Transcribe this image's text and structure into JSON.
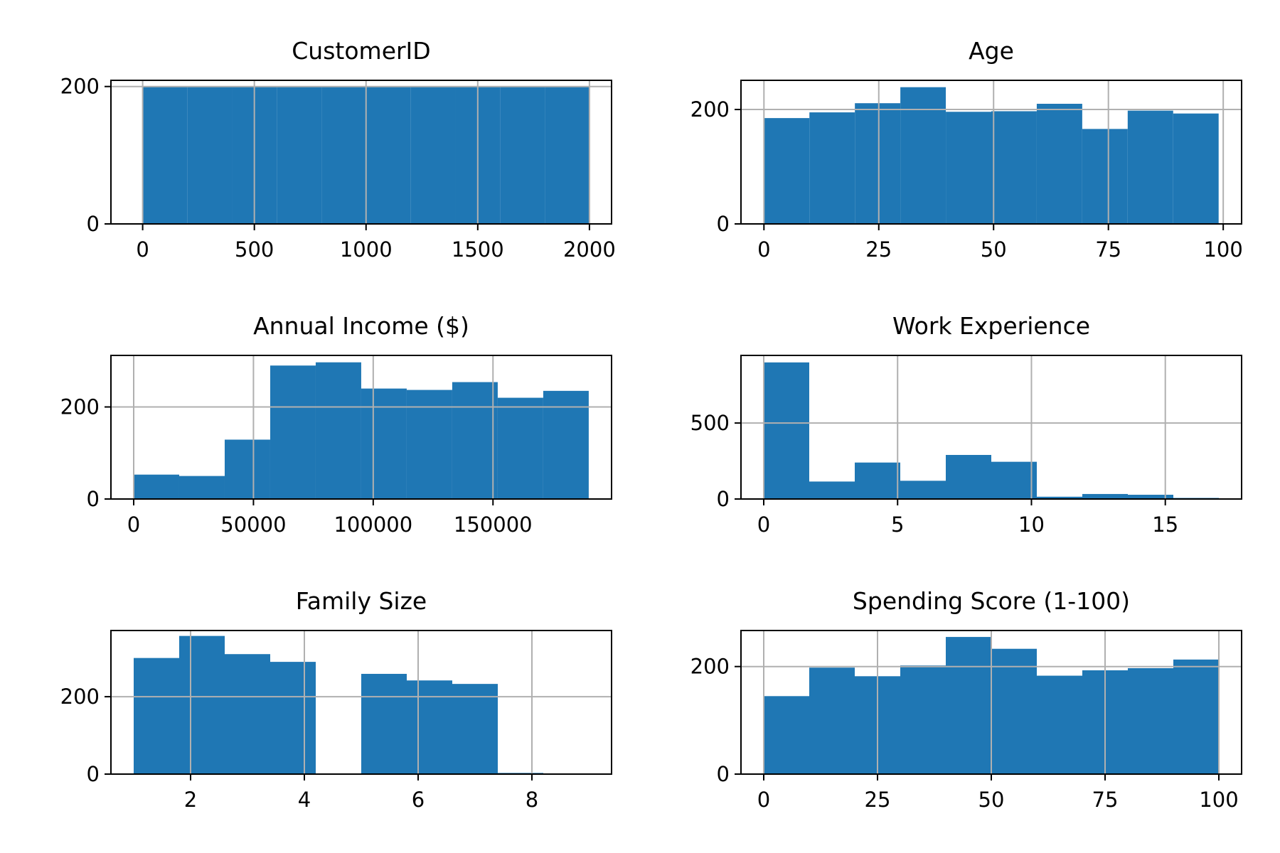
{
  "chart_data": [
    {
      "type": "bar",
      "title": "CustomerID",
      "xlabel": "",
      "ylabel": "",
      "xlim": [
        -142,
        2099
      ],
      "ylim": [
        0,
        209
      ],
      "xticks": [
        0,
        500,
        1000,
        1500,
        2000
      ],
      "xtick_labels": [
        "0",
        "500",
        "1000",
        "1500",
        "2000"
      ],
      "yticks": [
        0,
        200
      ],
      "ytick_labels": [
        "0",
        "200"
      ],
      "bin_edges": [
        1,
        200.9,
        400.8,
        600.7,
        800.6,
        1000.5,
        1200.4,
        1400.3,
        1600.2,
        1800.1,
        2000
      ],
      "values": [
        200,
        200,
        200,
        200,
        200,
        200,
        200,
        200,
        200,
        200
      ],
      "grid": true,
      "color": "#1f77b4"
    },
    {
      "type": "bar",
      "title": "Age",
      "xlabel": "",
      "ylabel": "",
      "xlim": [
        -5,
        104
      ],
      "ylim": [
        0,
        251
      ],
      "xticks": [
        0,
        25,
        50,
        75,
        100
      ],
      "xtick_labels": [
        "0",
        "25",
        "50",
        "75",
        "100"
      ],
      "yticks": [
        0,
        200
      ],
      "ytick_labels": [
        "0",
        "200"
      ],
      "bin_edges": [
        0,
        9.9,
        19.8,
        29.7,
        39.6,
        49.5,
        59.4,
        69.3,
        79.2,
        89.1,
        99
      ],
      "values": [
        185,
        195,
        211,
        239,
        196,
        197,
        210,
        166,
        198,
        193
      ],
      "grid": true,
      "color": "#1f77b4"
    },
    {
      "type": "bar",
      "title": "Annual Income ($)",
      "xlabel": "",
      "ylabel": "",
      "xlim": [
        -9500,
        199500
      ],
      "ylim": [
        0,
        312
      ],
      "xticks": [
        0,
        50000,
        100000,
        150000
      ],
      "xtick_labels": [
        "0",
        "50000",
        "100000",
        "150000"
      ],
      "yticks": [
        0,
        200
      ],
      "ytick_labels": [
        "0",
        "200"
      ],
      "bin_edges": [
        0,
        18997,
        37994,
        56991,
        75988,
        94985,
        113982,
        132979,
        151976,
        170973,
        189970
      ],
      "values": [
        53,
        50,
        129,
        290,
        297,
        240,
        237,
        254,
        220,
        235
      ],
      "grid": true,
      "color": "#1f77b4"
    },
    {
      "type": "bar",
      "title": "Work Experience",
      "xlabel": "",
      "ylabel": "",
      "xlim": [
        -0.85,
        17.85
      ],
      "ylim": [
        0,
        945
      ],
      "xticks": [
        0,
        5,
        10,
        15
      ],
      "xtick_labels": [
        "0",
        "5",
        "10",
        "15"
      ],
      "yticks": [
        0,
        500
      ],
      "ytick_labels": [
        "0",
        "500"
      ],
      "bin_edges": [
        0,
        1.7,
        3.4,
        5.1,
        6.8,
        8.5,
        10.2,
        11.9,
        13.6,
        15.3,
        17
      ],
      "values": [
        899,
        115,
        240,
        120,
        290,
        245,
        15,
        33,
        28,
        7
      ],
      "grid": true,
      "color": "#1f77b4"
    },
    {
      "type": "bar",
      "title": "Family Size",
      "xlabel": "",
      "ylabel": "",
      "xlim": [
        0.6,
        9.4
      ],
      "ylim": [
        0,
        371
      ],
      "xticks": [
        2,
        4,
        6,
        8
      ],
      "xtick_labels": [
        "2",
        "4",
        "6",
        "8"
      ],
      "yticks": [
        0,
        200
      ],
      "ytick_labels": [
        "0",
        "200"
      ],
      "bin_edges": [
        1,
        1.8,
        2.6,
        3.4,
        4.2,
        5,
        5.8,
        6.6,
        7.4,
        8.2,
        9
      ],
      "values": [
        300,
        357,
        310,
        290,
        0,
        259,
        242,
        233,
        3,
        1
      ],
      "grid": true,
      "color": "#1f77b4"
    },
    {
      "type": "bar",
      "title": "Spending Score (1-100)",
      "xlabel": "",
      "ylabel": "",
      "xlim": [
        -5,
        105
      ],
      "ylim": [
        0,
        267
      ],
      "xticks": [
        0,
        25,
        50,
        75,
        100
      ],
      "xtick_labels": [
        "0",
        "25",
        "50",
        "75",
        "100"
      ],
      "yticks": [
        0,
        200
      ],
      "ytick_labels": [
        "0",
        "200"
      ],
      "bin_edges": [
        0,
        10,
        20,
        30,
        40,
        50,
        60,
        70,
        80,
        90,
        100
      ],
      "values": [
        145,
        198,
        182,
        202,
        255,
        233,
        183,
        193,
        197,
        213
      ],
      "grid": true,
      "color": "#1f77b4"
    }
  ]
}
